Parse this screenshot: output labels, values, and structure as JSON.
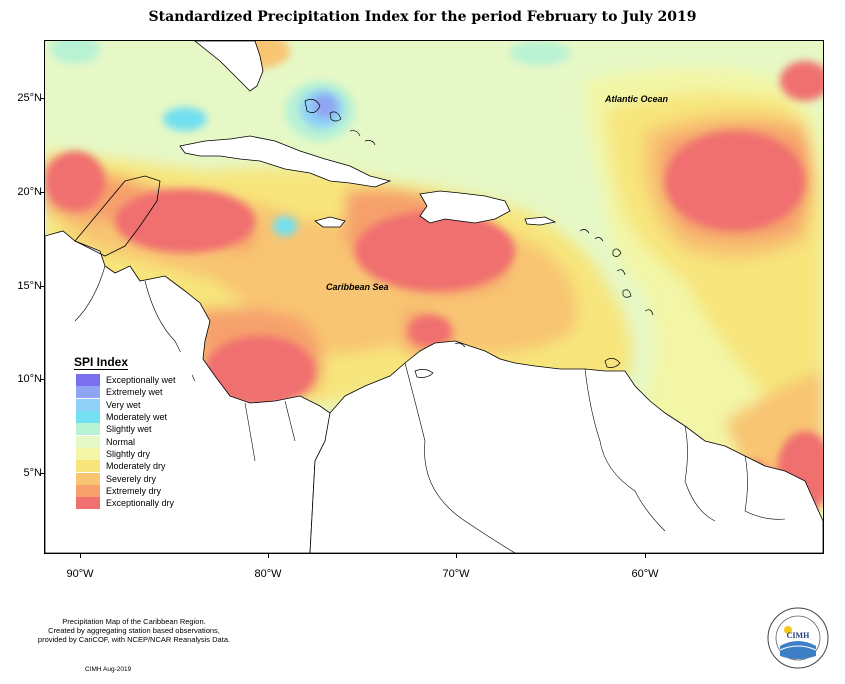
{
  "title": "Standardized Precipitation Index for the period February to July 2019",
  "axes": {
    "lat_labels": [
      "25°N",
      "20°N",
      "15°N",
      "10°N",
      "5°N"
    ],
    "lon_labels": [
      "90°W",
      "80°W",
      "70°W",
      "60°W"
    ]
  },
  "region_labels": {
    "atlantic": "Atlantic Ocean",
    "caribbean": "Caribbean Sea"
  },
  "legend": {
    "title": "SPI Index",
    "items": [
      {
        "label": "Exceptionally wet",
        "color": "#7b6ff0"
      },
      {
        "label": "Extremely wet",
        "color": "#8fa4f2"
      },
      {
        "label": "Very wet",
        "color": "#8fd0f6"
      },
      {
        "label": "Moderately wet",
        "color": "#72e0f0"
      },
      {
        "label": "Slightly wet",
        "color": "#b8f2d4"
      },
      {
        "label": "Normal",
        "color": "#e6f8c6"
      },
      {
        "label": "Slightly dry",
        "color": "#f2f6a6"
      },
      {
        "label": "Moderately dry",
        "color": "#f7e57c"
      },
      {
        "label": "Severely dry",
        "color": "#f8c572"
      },
      {
        "label": "Extremely dry",
        "color": "#f6a06c"
      },
      {
        "label": "Exceptionally dry",
        "color": "#f07070"
      }
    ]
  },
  "footer": {
    "line1": "Precipitation Map of the Caribbean Region.",
    "line2": "Created by aggregating station based observations,",
    "line3": "provided by CariCOF, with NCEP/NCAR Reanalysis Data.",
    "credit": "CIMH Aug-2019"
  },
  "logo": {
    "text": "CIMH"
  }
}
